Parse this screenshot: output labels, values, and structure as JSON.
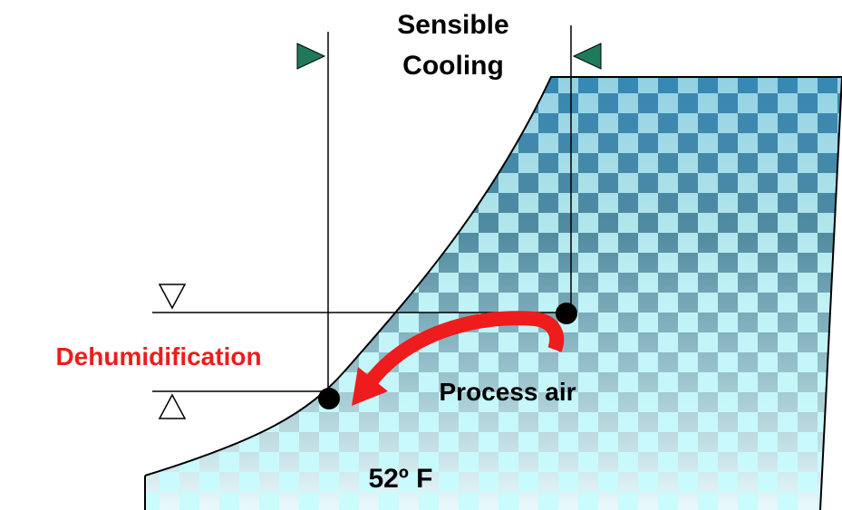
{
  "labels": {
    "sensible_cooling": {
      "line1": "Sensible",
      "line2": "Cooling"
    },
    "dehumidification": "Dehumidification",
    "process_air": "Process air",
    "temperature": "52º F"
  }
}
